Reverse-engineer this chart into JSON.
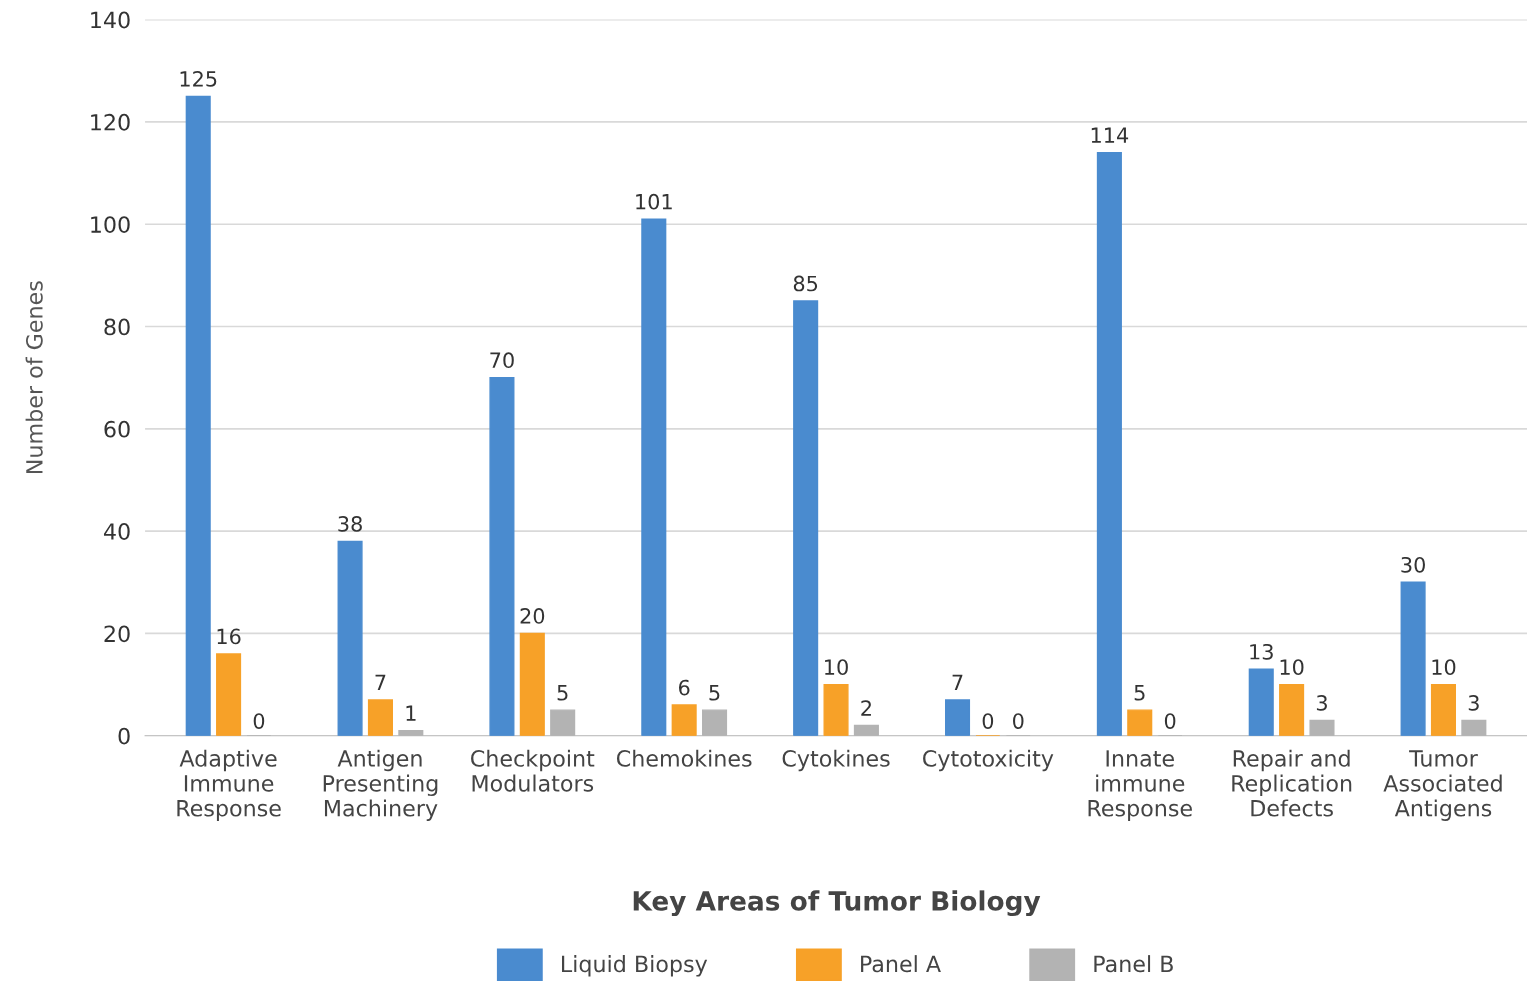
{
  "chart_data": {
    "type": "bar",
    "xlabel": "Key Areas of Tumor Biology",
    "ylabel": "Number of Genes",
    "categories": [
      "Adaptive\nImmune\nResponse",
      "Antigen\nPresenting\nMachinery",
      "Checkpoint\nModulators",
      "Chemokines",
      "Cytokines",
      "Cytotoxicity",
      "Innate\nimmune\nResponse",
      "Repair and\nReplication\nDefects",
      "Tumor\nAssociated\nAntigens"
    ],
    "series": [
      {
        "name": "Liquid Biopsy",
        "color": "#4a8bcf",
        "values": [
          125,
          38,
          70,
          101,
          85,
          7,
          114,
          13,
          30
        ]
      },
      {
        "name": "Panel A",
        "color": "#f7a128",
        "values": [
          16,
          7,
          20,
          6,
          10,
          0,
          5,
          10,
          10
        ]
      },
      {
        "name": "Panel B",
        "color": "#b3b3b3",
        "values": [
          0,
          1,
          5,
          5,
          2,
          0,
          0,
          3,
          3
        ]
      }
    ],
    "ylim": [
      0,
      140
    ],
    "yticks": [
      0,
      20,
      40,
      60,
      80,
      100,
      120,
      140
    ],
    "grid": "y",
    "legend": "bottom",
    "data_labels": true
  }
}
